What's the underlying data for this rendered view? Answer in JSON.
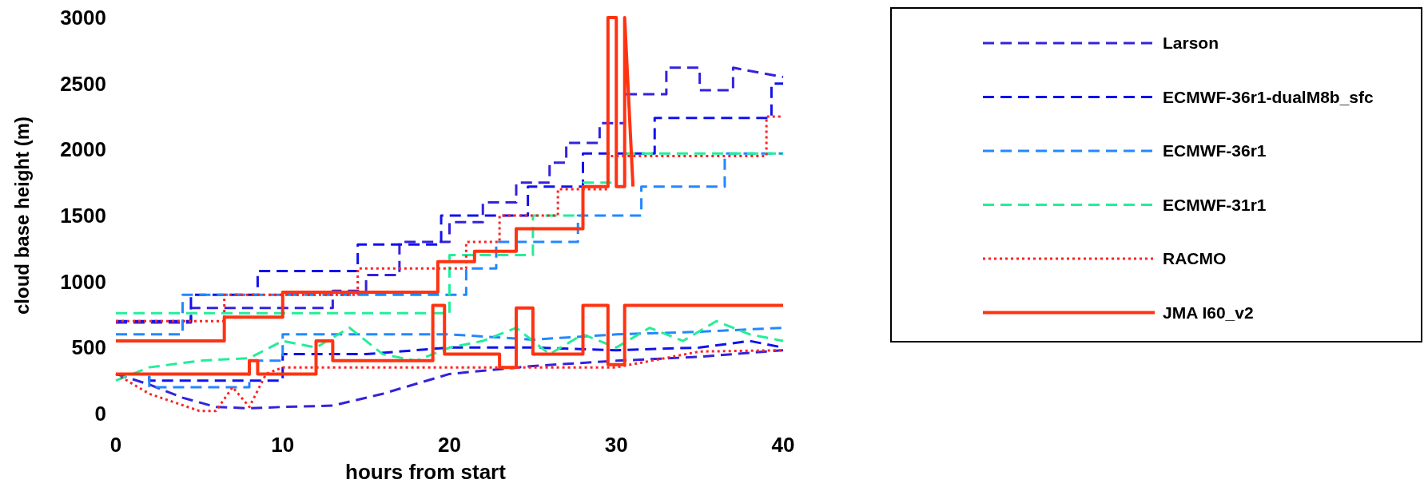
{
  "chart_data": {
    "type": "line",
    "xlabel": "hours from start",
    "ylabel": "cloud base height (m)",
    "xlim": [
      0,
      40
    ],
    "ylim": [
      0,
      3000
    ],
    "xticks": [
      0,
      10,
      20,
      30,
      40
    ],
    "yticks": [
      0,
      500,
      1000,
      1500,
      2000,
      2500,
      3000
    ],
    "grid": false,
    "legend": "right",
    "series": [
      {
        "name": "Larson",
        "color": "#3322dd",
        "line_style": "dashed",
        "x": [
          0,
          4.5,
          4.5,
          13,
          13,
          15,
          15,
          17,
          17,
          20,
          20,
          22,
          22,
          24,
          24,
          26,
          26,
          27,
          27,
          29,
          29,
          30.5,
          30.5,
          33,
          33,
          35,
          35,
          37,
          37,
          40
        ],
        "values": [
          690,
          690,
          800,
          800,
          930,
          930,
          1050,
          1050,
          1300,
          1300,
          1450,
          1450,
          1600,
          1600,
          1750,
          1750,
          1900,
          1900,
          2050,
          2050,
          2200,
          2200,
          2420,
          2420,
          2620,
          2620,
          2450,
          2450,
          2620,
          2550
        ]
      },
      {
        "color": "#3322dd",
        "line_style": "dashed",
        "x": [
          0,
          2,
          4,
          6,
          8,
          10,
          13,
          16,
          20,
          25,
          30,
          35,
          40
        ],
        "values": [
          300,
          220,
          120,
          50,
          40,
          50,
          60,
          150,
          300,
          360,
          400,
          430,
          480
        ]
      },
      {
        "name": "ECMWF-36r1-dualM8b_sfc",
        "color": "#1111ee",
        "line_style": "dashed",
        "x": [
          0,
          4.5,
          4.5,
          8.5,
          8.5,
          14.5,
          14.5,
          19.5,
          19.5,
          24.7,
          24.7,
          28,
          28,
          32.3,
          32.3,
          39.3,
          39.3,
          40
        ],
        "values": [
          700,
          700,
          900,
          900,
          1080,
          1080,
          1280,
          1280,
          1500,
          1500,
          1720,
          1720,
          1970,
          1970,
          2240,
          2240,
          2500,
          2500
        ]
      },
      {
        "color": "#1111ee",
        "line_style": "dashed",
        "x": [
          0,
          2,
          2,
          10,
          10,
          15,
          20,
          25,
          30,
          35,
          38,
          40
        ],
        "values": [
          300,
          300,
          250,
          250,
          450,
          450,
          500,
          500,
          480,
          500,
          550,
          500
        ]
      },
      {
        "name": "ECMWF-36r1",
        "color": "#2288ff",
        "line_style": "dashed",
        "x": [
          0,
          4,
          4,
          21,
          21,
          22.8,
          22.8,
          27.7,
          27.7,
          31.5,
          31.5,
          36.5,
          36.5,
          40
        ],
        "values": [
          600,
          600,
          900,
          900,
          1100,
          1100,
          1300,
          1300,
          1500,
          1500,
          1720,
          1720,
          1970,
          1970
        ]
      },
      {
        "color": "#2288ff",
        "line_style": "dashed",
        "x": [
          0,
          2,
          2,
          8,
          8,
          10,
          10,
          20,
          25,
          30,
          35,
          40
        ],
        "values": [
          300,
          300,
          200,
          200,
          400,
          400,
          600,
          600,
          560,
          600,
          620,
          650
        ]
      },
      {
        "name": "ECMWF-31r1",
        "color": "#22ee99",
        "line_style": "dashed",
        "x": [
          0,
          20,
          20,
          25,
          25,
          28,
          28,
          30,
          30,
          40
        ],
        "values": [
          760,
          760,
          1200,
          1200,
          1500,
          1500,
          1750,
          1750,
          1970,
          1970
        ]
      },
      {
        "color": "#22ee99",
        "line_style": "dashed",
        "x": [
          0,
          2,
          5,
          8,
          10,
          12,
          14,
          16,
          18,
          20,
          22,
          24,
          26,
          28,
          30,
          32,
          34,
          36,
          38,
          40
        ],
        "values": [
          250,
          350,
          400,
          420,
          550,
          500,
          650,
          450,
          400,
          500,
          550,
          650,
          450,
          600,
          500,
          650,
          550,
          700,
          600,
          550
        ]
      },
      {
        "name": "RACMO",
        "color": "#ff2222",
        "line_style": "dotted",
        "x": [
          0,
          6.5,
          6.5,
          14.5,
          14.5,
          21,
          21,
          23,
          23,
          26.5,
          26.5,
          29.5,
          29.5,
          39,
          39,
          40
        ],
        "values": [
          700,
          700,
          900,
          900,
          1100,
          1100,
          1300,
          1300,
          1500,
          1500,
          1700,
          1700,
          1950,
          1950,
          2250,
          2250
        ]
      },
      {
        "color": "#ff2222",
        "line_style": "dotted",
        "x": [
          0,
          2,
          5,
          6,
          7,
          8,
          9,
          10,
          20,
          30,
          35,
          40
        ],
        "values": [
          300,
          150,
          20,
          20,
          200,
          50,
          300,
          350,
          350,
          350,
          470,
          480
        ]
      },
      {
        "name": "JMA I60_v2",
        "color": "#ff3311",
        "line_style": "solid",
        "x": [
          0,
          6.5,
          6.5,
          10,
          10,
          19.3,
          19.3,
          21.5,
          21.5,
          24,
          24,
          28,
          28,
          29.5,
          29.5,
          30,
          30,
          30.5,
          30.5,
          31
        ],
        "values": [
          550,
          550,
          730,
          730,
          920,
          920,
          1150,
          1150,
          1230,
          1230,
          1400,
          1400,
          1720,
          1720,
          3000,
          3000,
          1720,
          1720,
          3000,
          1720
        ]
      },
      {
        "color": "#ff3311",
        "line_style": "solid",
        "x": [
          0,
          8,
          8,
          8.5,
          8.5,
          12,
          12,
          13,
          13,
          19,
          19,
          19.7,
          19.7,
          23,
          23,
          24,
          24,
          25,
          25,
          28,
          28,
          29.5,
          29.5,
          30.5,
          30.5,
          40
        ],
        "values": [
          300,
          300,
          400,
          400,
          300,
          300,
          550,
          550,
          400,
          400,
          820,
          820,
          450,
          450,
          350,
          350,
          800,
          800,
          450,
          450,
          820,
          820,
          370,
          370,
          820,
          820
        ]
      }
    ]
  }
}
